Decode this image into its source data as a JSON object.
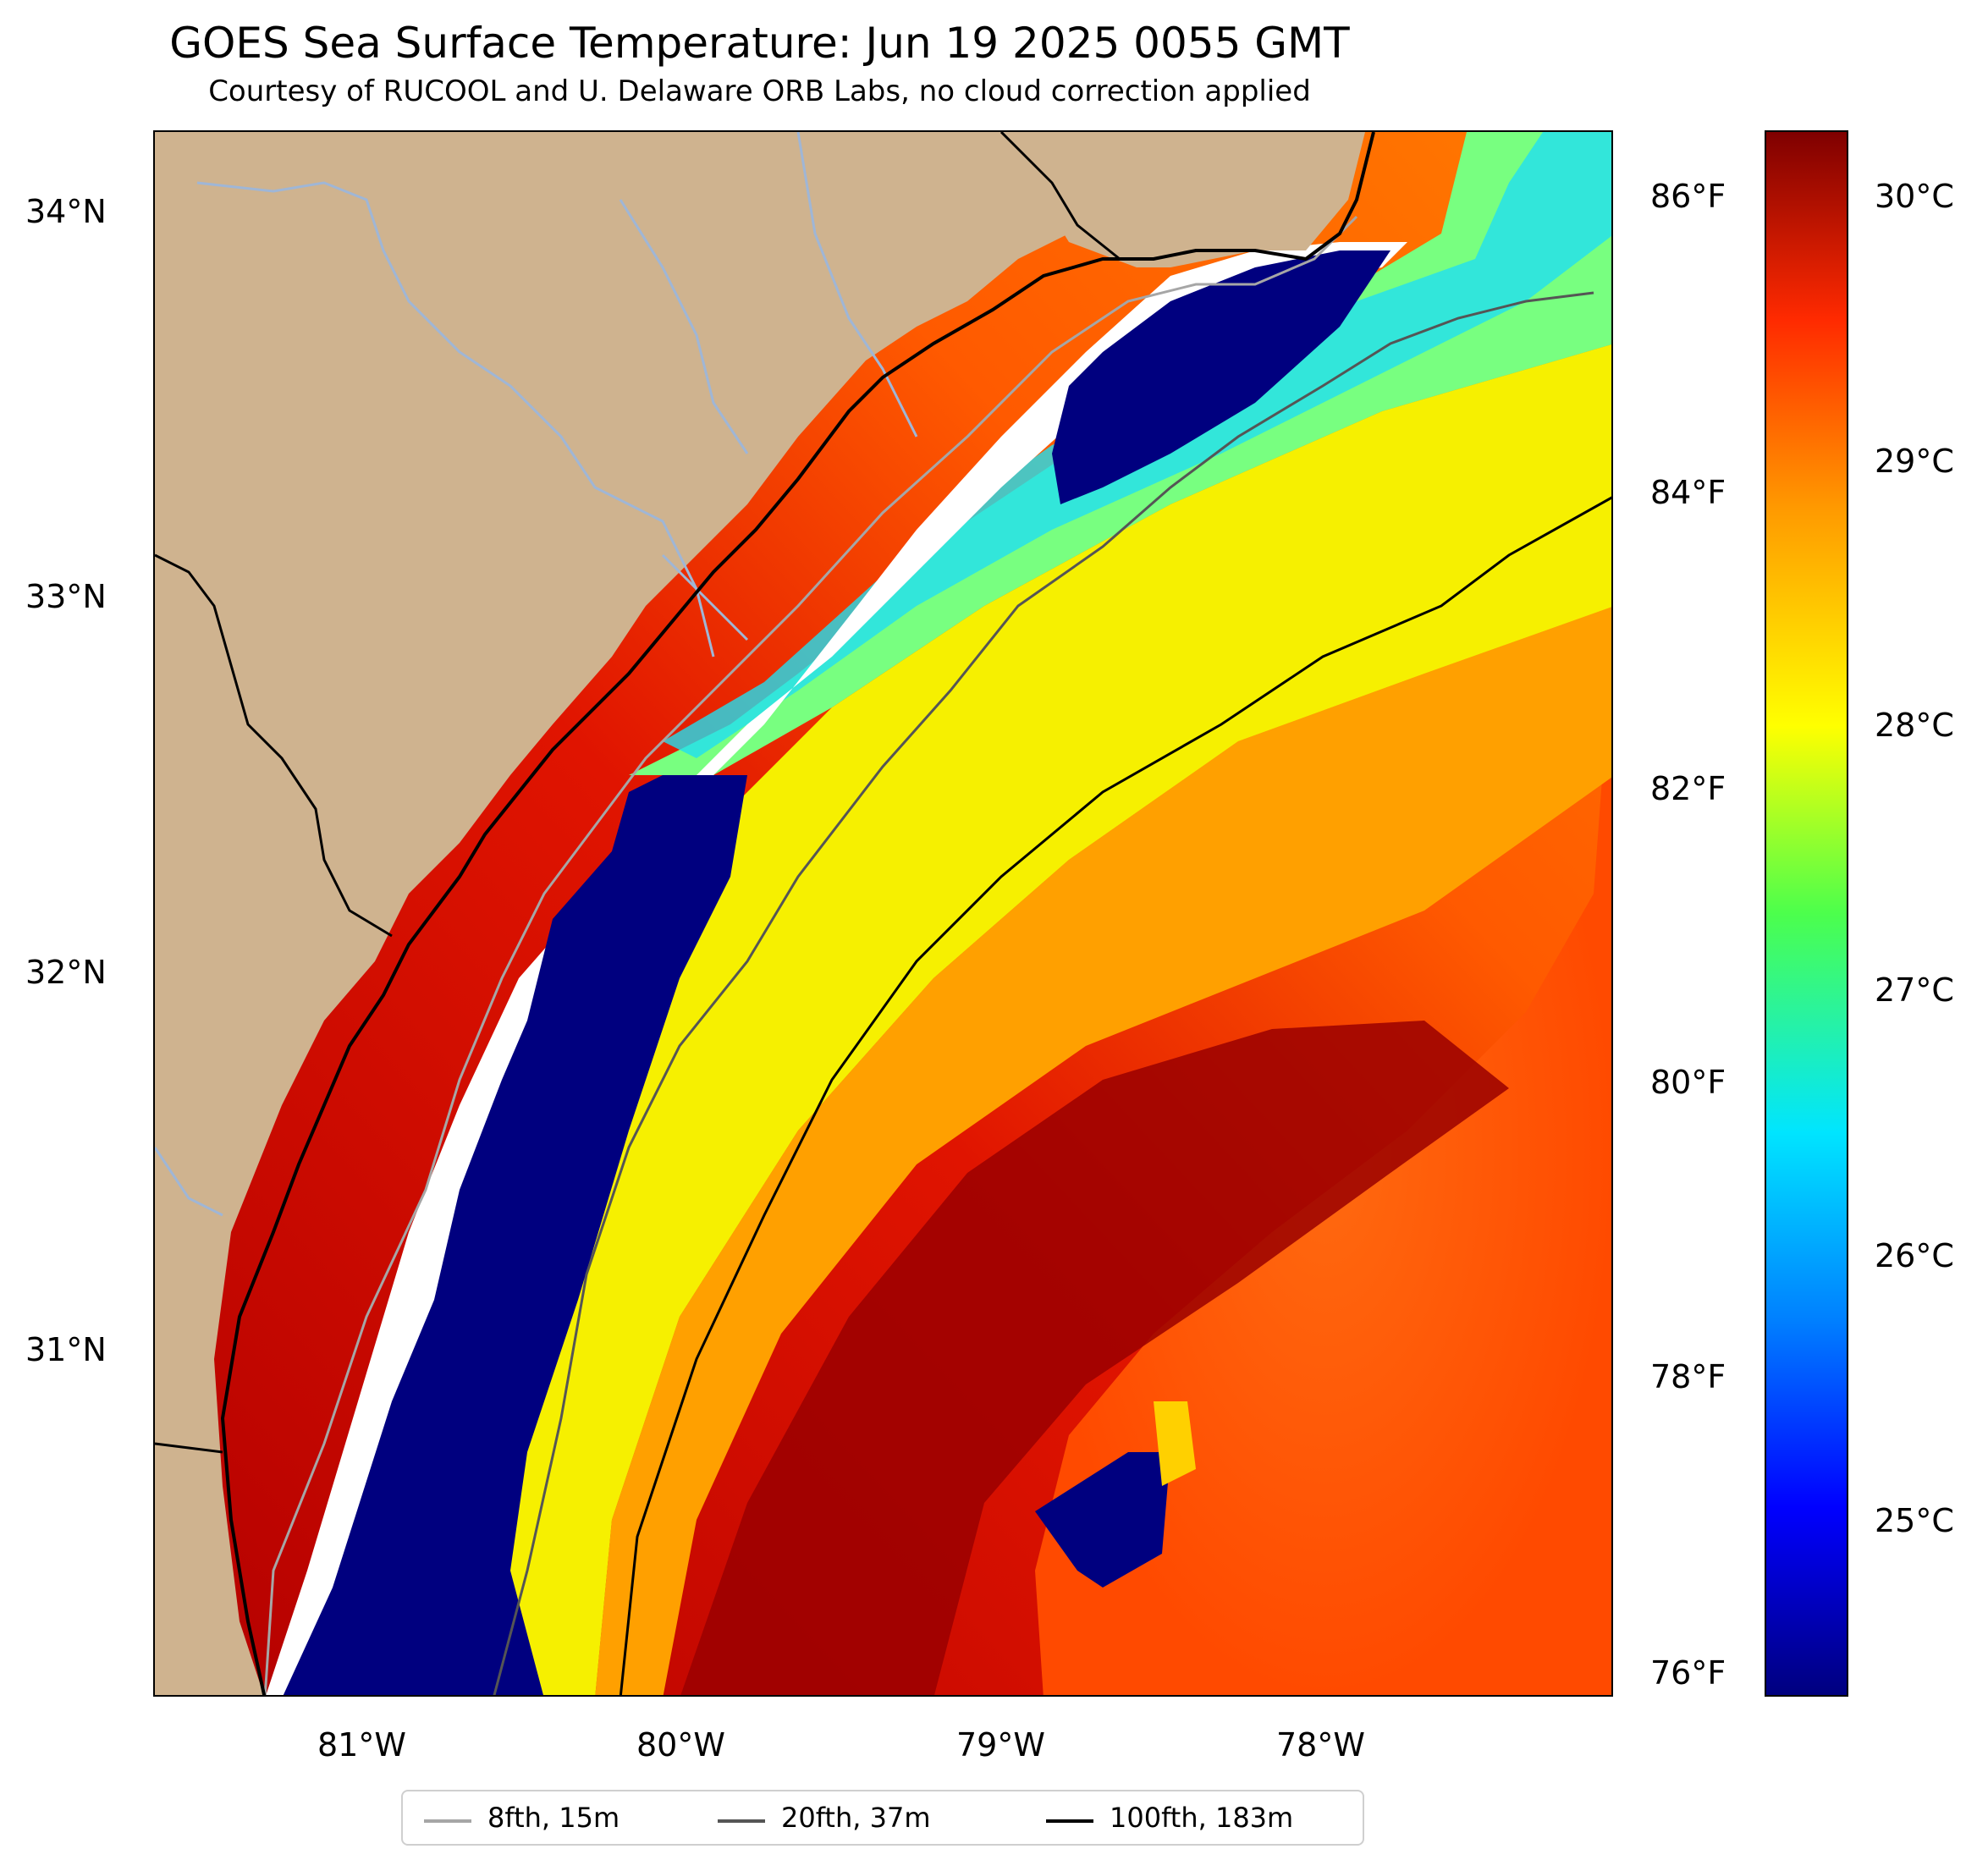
{
  "title": "GOES Sea Surface Temperature: Jun 19 2025 0055 GMT",
  "subtitle": "Courtesy of RUCOOL and U. Delaware ORB Labs, no cloud correction applied",
  "axes": {
    "lat_labels": [
      "34°N",
      "33°N",
      "32°N",
      "31°N"
    ],
    "lon_labels": [
      "81°W",
      "80°W",
      "79°W",
      "78°W"
    ],
    "fahrenheit_labels": [
      "86°F",
      "84°F",
      "82°F",
      "80°F",
      "78°F",
      "76°F"
    ]
  },
  "colorbar": {
    "celsius_labels": [
      "30°C",
      "29°C",
      "28°C",
      "27°C",
      "26°C",
      "25°C"
    ],
    "colormap": "jet",
    "colors": [
      "#00007f",
      "#0000ff",
      "#0080ff",
      "#00e5ff",
      "#4cff4c",
      "#ffff00",
      "#ff9900",
      "#ff2a00",
      "#7f0000"
    ]
  },
  "legend": {
    "items": [
      {
        "label": "8fth, 15m",
        "color": "#a6a6a6"
      },
      {
        "label": "20fth, 37m",
        "color": "#555555"
      },
      {
        "label": "100fth, 183m",
        "color": "#000000"
      }
    ]
  },
  "map_colors": {
    "land": "#cfb38f",
    "no_data": "#ffffff",
    "rivers": "#9fb6d6"
  }
}
